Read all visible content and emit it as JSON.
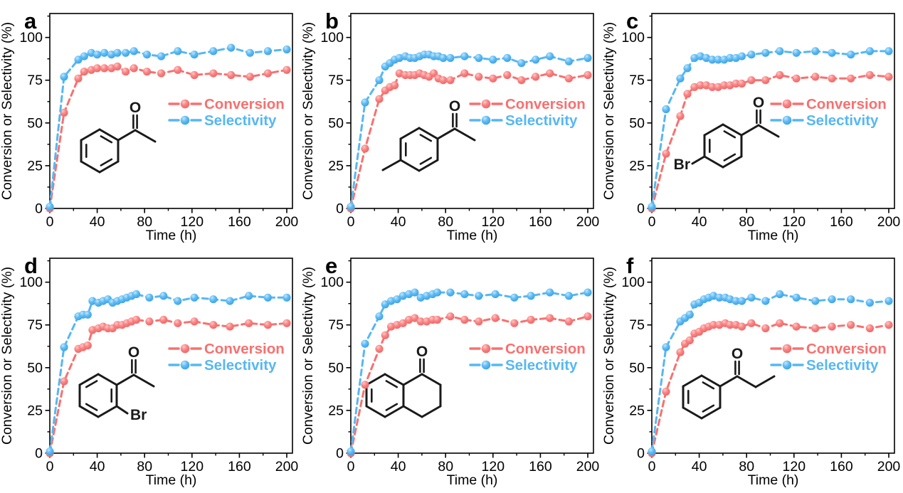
{
  "figure_title": "",
  "colors": {
    "conversion": "#F87070",
    "conversion_dark": "#F06060",
    "conversion_light": "#FDC9C9",
    "selectivity": "#57B7F2",
    "selectivity_dark": "#379FE4",
    "selectivity_light": "#C3E6FB",
    "axis": "#000000",
    "molecule": "#1a1a1a",
    "background": "#FFFFFF"
  },
  "legend": {
    "conversion_label": "Conversion",
    "selectivity_label": "Selectivity"
  },
  "axes": {
    "xlabel": "Time (h)",
    "ylabel": "Conversion or Selectivity (%)",
    "x_ticks": [
      0,
      40,
      80,
      120,
      160,
      200
    ],
    "x_minor_ticks": [
      20,
      60,
      100,
      140,
      180
    ],
    "y_ticks": [
      0,
      25,
      50,
      75,
      100
    ],
    "y_minor_ticks": [
      12.5,
      37.5,
      62.5,
      87.5,
      112.5
    ],
    "xlim": [
      0,
      205
    ],
    "ylim": [
      0,
      114
    ]
  },
  "chart_data": [
    {
      "type": "line",
      "panel": "a",
      "molecule": {
        "name": "acetophenone",
        "atom_labels": {
          "O": "O"
        }
      },
      "x": [
        0,
        12,
        24,
        29,
        35,
        40,
        46,
        52,
        57,
        64,
        71,
        82,
        94,
        108,
        122,
        138,
        153,
        169,
        184,
        200
      ],
      "series": [
        {
          "name": "Conversion",
          "values": [
            0,
            56,
            76,
            80,
            81,
            82,
            82,
            82,
            83,
            80,
            82,
            80,
            79,
            81,
            78,
            79,
            78,
            77,
            79,
            81
          ]
        },
        {
          "name": "Selectivity",
          "values": [
            1,
            77,
            87,
            89,
            91,
            90,
            91,
            90,
            91,
            91,
            92,
            90,
            89,
            92,
            90,
            92,
            94,
            91,
            92,
            93
          ]
        }
      ]
    },
    {
      "type": "line",
      "panel": "b",
      "molecule": {
        "name": "4-methylacetophenone",
        "atom_labels": {
          "O": "O"
        }
      },
      "x": [
        0,
        12,
        24,
        29,
        33,
        37,
        41,
        46,
        50,
        54,
        58,
        62,
        66,
        70,
        74,
        78,
        84,
        96,
        108,
        120,
        132,
        144,
        156,
        168,
        184,
        200
      ],
      "series": [
        {
          "name": "Conversion",
          "values": [
            0,
            35,
            64,
            69,
            71,
            72,
            79,
            78,
            78,
            78,
            79,
            78,
            77,
            79,
            76,
            75,
            75,
            79,
            77,
            76,
            78,
            75,
            77,
            79,
            76,
            78
          ]
        },
        {
          "name": "Selectivity",
          "values": [
            1,
            62,
            75,
            83,
            85,
            87,
            88,
            89,
            88,
            88,
            89,
            90,
            90,
            89,
            89,
            88,
            88,
            89,
            88,
            87,
            88,
            85,
            87,
            89,
            86,
            88
          ]
        }
      ]
    },
    {
      "type": "line",
      "panel": "c",
      "molecule": {
        "name": "4-bromoacetophenone",
        "atom_labels": {
          "O": "O",
          "Br": "Br"
        }
      },
      "x": [
        0,
        12,
        24,
        30,
        36,
        41,
        46,
        51,
        56,
        61,
        66,
        71,
        76,
        84,
        96,
        108,
        122,
        138,
        152,
        168,
        184,
        200
      ],
      "series": [
        {
          "name": "Conversion",
          "values": [
            0,
            32,
            54,
            67,
            71,
            72,
            72,
            71,
            71,
            72,
            72,
            73,
            73,
            75,
            75,
            78,
            76,
            77,
            76,
            76,
            78,
            77
          ]
        },
        {
          "name": "Selectivity",
          "values": [
            1,
            58,
            76,
            82,
            88,
            89,
            88,
            87,
            87,
            87,
            88,
            88,
            89,
            90,
            91,
            92,
            91,
            92,
            91,
            90,
            92,
            92
          ]
        }
      ]
    },
    {
      "type": "line",
      "panel": "d",
      "molecule": {
        "name": "2-bromoacetophenone",
        "atom_labels": {
          "O": "O",
          "Br": "Br"
        }
      },
      "x": [
        0,
        12,
        24,
        28,
        32,
        36,
        41,
        45,
        49,
        53,
        57,
        61,
        65,
        69,
        73,
        84,
        96,
        108,
        122,
        138,
        152,
        168,
        184,
        200
      ],
      "series": [
        {
          "name": "Conversion",
          "values": [
            0,
            42,
            61,
            62,
            63,
            72,
            73,
            74,
            73,
            73,
            75,
            75,
            76,
            77,
            78,
            77,
            78,
            76,
            77,
            75,
            74,
            76,
            75,
            76
          ]
        },
        {
          "name": "Selectivity",
          "values": [
            1,
            62,
            80,
            81,
            81,
            89,
            88,
            89,
            90,
            88,
            89,
            90,
            91,
            92,
            93,
            91,
            92,
            89,
            91,
            90,
            89,
            92,
            91,
            91
          ]
        }
      ]
    },
    {
      "type": "line",
      "panel": "e",
      "molecule": {
        "name": "1-tetralone",
        "atom_labels": {
          "O": "O"
        }
      },
      "x": [
        0,
        12,
        24,
        29,
        34,
        39,
        44,
        49,
        54,
        59,
        64,
        69,
        73,
        84,
        96,
        108,
        122,
        138,
        152,
        168,
        184,
        200
      ],
      "series": [
        {
          "name": "Conversion",
          "values": [
            0,
            40,
            61,
            69,
            74,
            75,
            76,
            78,
            79,
            77,
            77,
            78,
            78,
            80,
            78,
            77,
            79,
            76,
            78,
            79,
            77,
            80
          ]
        },
        {
          "name": "Selectivity",
          "values": [
            1,
            64,
            80,
            87,
            89,
            90,
            92,
            93,
            94,
            91,
            92,
            93,
            94,
            94,
            93,
            92,
            93,
            91,
            92,
            94,
            92,
            94
          ]
        }
      ]
    },
    {
      "type": "line",
      "panel": "f",
      "molecule": {
        "name": "propiophenone",
        "atom_labels": {
          "O": "O"
        }
      },
      "x": [
        0,
        12,
        24,
        28,
        32,
        36,
        40,
        44,
        48,
        52,
        57,
        62,
        66,
        71,
        76,
        84,
        96,
        108,
        122,
        138,
        152,
        168,
        184,
        200
      ],
      "series": [
        {
          "name": "Conversion",
          "values": [
            0,
            36,
            59,
            64,
            66,
            70,
            71,
            73,
            74,
            75,
            75,
            76,
            75,
            75,
            74,
            76,
            73,
            76,
            74,
            73,
            74,
            75,
            73,
            75
          ]
        },
        {
          "name": "Selectivity",
          "values": [
            1,
            62,
            77,
            79,
            81,
            87,
            88,
            90,
            91,
            92,
            91,
            91,
            90,
            89,
            89,
            91,
            89,
            93,
            91,
            89,
            90,
            90,
            88,
            89
          ]
        }
      ]
    }
  ]
}
